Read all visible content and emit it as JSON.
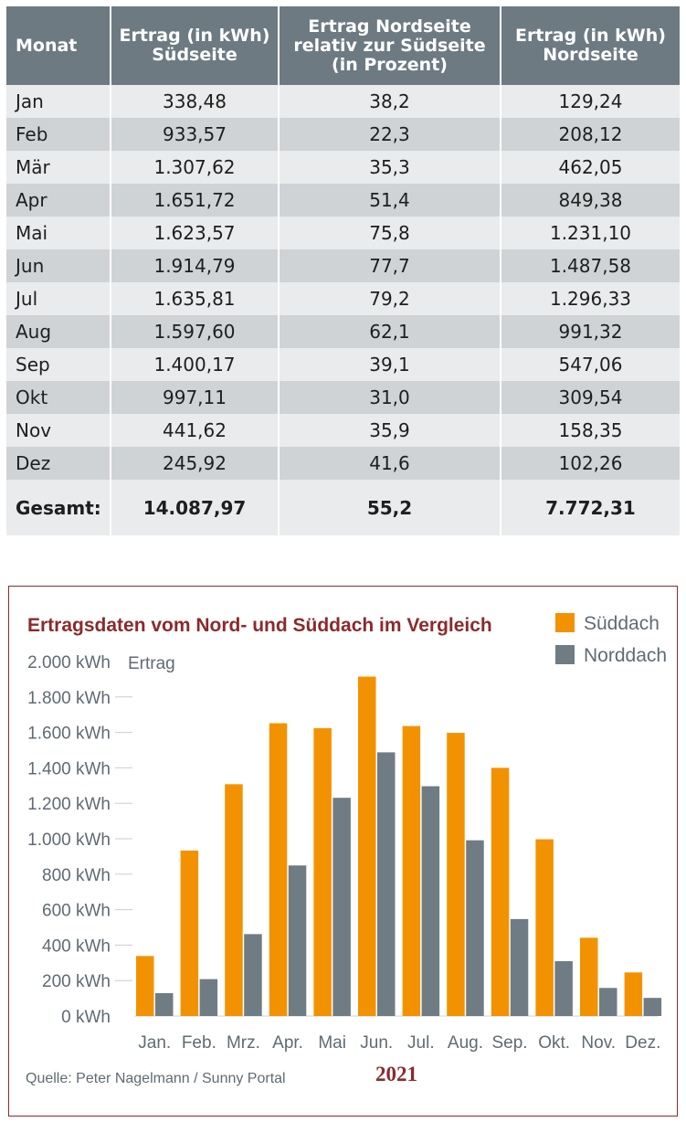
{
  "table": {
    "headers": {
      "month": "Monat",
      "south": [
        "Ertrag (in kWh)",
        "Südseite"
      ],
      "ratio": [
        "Ertrag Nordseite",
        "relativ zur Südseite",
        "(in Prozent)"
      ],
      "north": [
        "Ertrag (in kWh)",
        "Nordseite"
      ]
    },
    "rows": [
      {
        "month": "Jan",
        "south": "338,48",
        "ratio": "38,2",
        "north": "129,24"
      },
      {
        "month": "Feb",
        "south": "933,57",
        "ratio": "22,3",
        "north": "208,12"
      },
      {
        "month": "Mär",
        "south": "1.307,62",
        "ratio": "35,3",
        "north": "462,05"
      },
      {
        "month": "Apr",
        "south": "1.651,72",
        "ratio": "51,4",
        "north": "849,38"
      },
      {
        "month": "Mai",
        "south": "1.623,57",
        "ratio": "75,8",
        "north": "1.231,10"
      },
      {
        "month": "Jun",
        "south": "1.914,79",
        "ratio": "77,7",
        "north": "1.487,58"
      },
      {
        "month": "Jul",
        "south": "1.635,81",
        "ratio": "79,2",
        "north": "1.296,33"
      },
      {
        "month": "Aug",
        "south": "1.597,60",
        "ratio": "62,1",
        "north": "991,32"
      },
      {
        "month": "Sep",
        "south": "1.400,17",
        "ratio": "39,1",
        "north": "547,06"
      },
      {
        "month": "Okt",
        "south": "997,11",
        "ratio": "31,0",
        "north": "309,54"
      },
      {
        "month": "Nov",
        "south": "441,62",
        "ratio": "35,9",
        "north": "158,35"
      },
      {
        "month": "Dez",
        "south": "245,92",
        "ratio": "41,6",
        "north": "102,26"
      }
    ],
    "total": {
      "label": "Gesamt:",
      "south": "14.087,97",
      "ratio": "55,2",
      "north": "7.772,31"
    }
  },
  "chart_data": {
    "type": "bar",
    "title": "Ertragsdaten vom Nord- und Süddach im Vergleich",
    "ylabel": "Ertrag",
    "categories": [
      "Jan.",
      "Feb.",
      "Mrz.",
      "Apr.",
      "Mai",
      "Jun.",
      "Jul.",
      "Aug.",
      "Sep.",
      "Okt.",
      "Nov.",
      "Dez."
    ],
    "series": [
      {
        "name": "Süddach",
        "color": "#f39200",
        "values": [
          338.48,
          933.57,
          1307.62,
          1651.72,
          1623.57,
          1914.79,
          1635.81,
          1597.6,
          1400.17,
          997.11,
          441.62,
          245.92
        ]
      },
      {
        "name": "Norddach",
        "color": "#6f7c84",
        "values": [
          129.24,
          208.12,
          462.05,
          849.38,
          1231.1,
          1487.58,
          1296.33,
          991.32,
          547.06,
          309.54,
          158.35,
          102.26
        ]
      }
    ],
    "ylim": [
      0,
      2000
    ],
    "yticks": [
      0,
      200,
      400,
      600,
      800,
      1000,
      1200,
      1400,
      1600,
      1800,
      2000
    ],
    "ytick_labels": [
      "0 kWh",
      "200 kWh",
      "400 kWh",
      "600 kWh",
      "800 kWh",
      "1.000 kWh",
      "1.200 kWh",
      "1.400 kWh",
      "1.600 kWh",
      "1.800 kWh",
      "2.000 kWh"
    ],
    "xlabel": "2021",
    "legend": "top-right",
    "grid": false,
    "source": "Quelle: Peter Nagelmann / Sunny Portal"
  }
}
